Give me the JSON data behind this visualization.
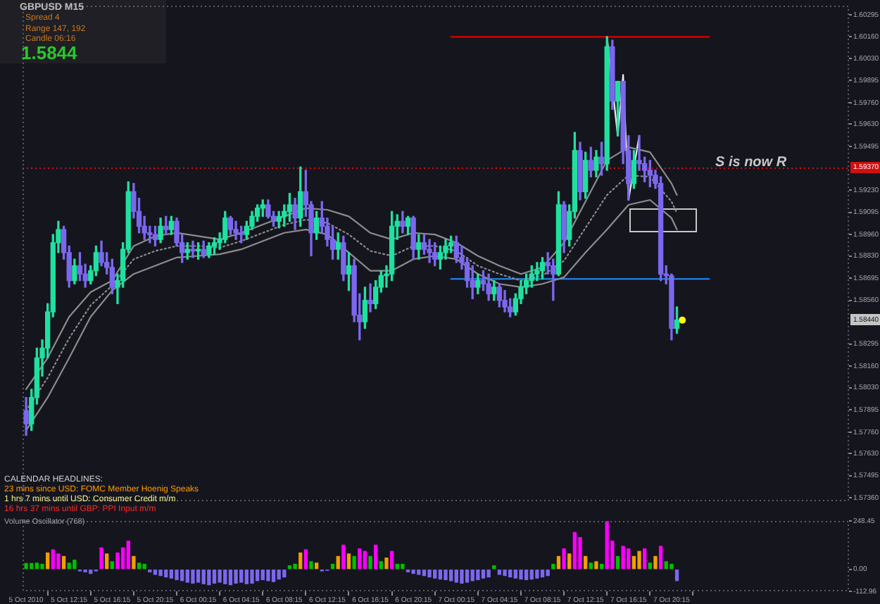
{
  "chart_data": [
    {
      "type": "candlestick",
      "title": "GBPUSD M15",
      "x": [
        "2010-10-05T08:15",
        "2010-10-05T08:45",
        "2010-10-05T09:15",
        "2010-10-05T09:45",
        "2010-10-05T10:15",
        "2010-10-05T10:45",
        "2010-10-05T11:15",
        "2010-10-05T11:45",
        "2010-10-05T12:15",
        "2010-10-05T12:45",
        "2010-10-05T13:15",
        "2010-10-05T13:45",
        "2010-10-05T14:15",
        "2010-10-05T14:45",
        "2010-10-05T15:15",
        "2010-10-05T15:45",
        "2010-10-05T16:15",
        "2010-10-05T16:45",
        "2010-10-05T17:15",
        "2010-10-05T17:45",
        "2010-10-05T18:15",
        "2010-10-05T18:45",
        "2010-10-05T19:15",
        "2010-10-05T19:45",
        "2010-10-05T20:15",
        "2010-10-05T20:45",
        "2010-10-05T21:15",
        "2010-10-05T21:45",
        "2010-10-05T22:15",
        "2010-10-05T22:45",
        "2010-10-05T23:15",
        "2010-10-05T23:45",
        "2010-10-06T00:15",
        "2010-10-06T00:45",
        "2010-10-06T01:15",
        "2010-10-06T01:45",
        "2010-10-06T02:15",
        "2010-10-06T02:45",
        "2010-10-06T03:15",
        "2010-10-06T03:45",
        "2010-10-06T04:15",
        "2010-10-06T04:45",
        "2010-10-06T05:15",
        "2010-10-06T05:45",
        "2010-10-06T06:15",
        "2010-10-06T06:45",
        "2010-10-06T07:15",
        "2010-10-06T07:45",
        "2010-10-06T08:15",
        "2010-10-06T08:45",
        "2010-10-06T09:15",
        "2010-10-06T09:45",
        "2010-10-06T10:15",
        "2010-10-06T10:45",
        "2010-10-06T11:15",
        "2010-10-06T11:45",
        "2010-10-06T12:15",
        "2010-10-06T12:45",
        "2010-10-06T13:15",
        "2010-10-06T13:45",
        "2010-10-06T14:15",
        "2010-10-06T14:45",
        "2010-10-06T15:15",
        "2010-10-06T15:45",
        "2010-10-06T16:15",
        "2010-10-06T16:45",
        "2010-10-06T17:15",
        "2010-10-06T17:45",
        "2010-10-06T18:15",
        "2010-10-06T18:45",
        "2010-10-06T19:15",
        "2010-10-06T19:45",
        "2010-10-06T20:15",
        "2010-10-06T20:45",
        "2010-10-06T21:15",
        "2010-10-06T21:45",
        "2010-10-06T22:15",
        "2010-10-06T22:45",
        "2010-10-06T23:15",
        "2010-10-06T23:45",
        "2010-10-07T00:15",
        "2010-10-07T00:45",
        "2010-10-07T01:15",
        "2010-10-07T01:45",
        "2010-10-07T02:15",
        "2010-10-07T02:45",
        "2010-10-07T03:15",
        "2010-10-07T03:45",
        "2010-10-07T04:15",
        "2010-10-07T04:45",
        "2010-10-07T05:15",
        "2010-10-07T05:45",
        "2010-10-07T06:15",
        "2010-10-07T06:45",
        "2010-10-07T07:15",
        "2010-10-07T07:45",
        "2010-10-07T08:15",
        "2010-10-07T08:45",
        "2010-10-07T09:15",
        "2010-10-07T09:45",
        "2010-10-07T10:15",
        "2010-10-07T10:45",
        "2010-10-07T11:15",
        "2010-10-07T11:45",
        "2010-10-07T12:15",
        "2010-10-07T12:45",
        "2010-10-07T13:15",
        "2010-10-07T13:45",
        "2010-10-07T14:15",
        "2010-10-07T14:45",
        "2010-10-07T15:15",
        "2010-10-07T15:45",
        "2010-10-07T16:15",
        "2010-10-07T16:45",
        "2010-10-07T17:15",
        "2010-10-07T17:45",
        "2010-10-07T18:15",
        "2010-10-07T18:45",
        "2010-10-07T19:15",
        "2010-10-07T19:45",
        "2010-10-07T20:15",
        "2010-10-07T20:45"
      ],
      "ohlc": [
        [
          1.5789,
          1.5797,
          1.5774,
          1.5781
        ],
        [
          1.5781,
          1.5802,
          1.5777,
          1.5797
        ],
        [
          1.5797,
          1.5827,
          1.5793,
          1.5821
        ],
        [
          1.5821,
          1.5832,
          1.581,
          1.5827
        ],
        [
          1.5827,
          1.5854,
          1.5821,
          1.5849
        ],
        [
          1.5849,
          1.5896,
          1.5846,
          1.5891
        ],
        [
          1.5891,
          1.5904,
          1.5885,
          1.5899
        ],
        [
          1.5899,
          1.5901,
          1.5881,
          1.5885
        ],
        [
          1.5885,
          1.5889,
          1.5864,
          1.5868
        ],
        [
          1.5868,
          1.5881,
          1.5866,
          1.5877
        ],
        [
          1.5877,
          1.5885,
          1.5868,
          1.5872
        ],
        [
          1.5872,
          1.5878,
          1.5864,
          1.5868
        ],
        [
          1.5868,
          1.5877,
          1.5866,
          1.5874
        ],
        [
          1.5874,
          1.5889,
          1.5871,
          1.5885
        ],
        [
          1.5885,
          1.5892,
          1.5877,
          1.5879
        ],
        [
          1.5879,
          1.5885,
          1.5872,
          1.5876
        ],
        [
          1.5876,
          1.5881,
          1.586,
          1.5864
        ],
        [
          1.5864,
          1.5872,
          1.5854,
          1.5868
        ],
        [
          1.5868,
          1.5891,
          1.5864,
          1.5887
        ],
        [
          1.5887,
          1.5928,
          1.5885,
          1.5922
        ],
        [
          1.5922,
          1.5927,
          1.5906,
          1.591
        ],
        [
          1.591,
          1.5918,
          1.5897,
          1.5901
        ],
        [
          1.5901,
          1.5907,
          1.5893,
          1.5897
        ],
        [
          1.5897,
          1.5901,
          1.5891,
          1.5896
        ],
        [
          1.5896,
          1.5901,
          1.5889,
          1.5893
        ],
        [
          1.5893,
          1.5906,
          1.5891,
          1.5901
        ],
        [
          1.5901,
          1.5907,
          1.5896,
          1.5899
        ],
        [
          1.5899,
          1.5907,
          1.5896,
          1.5904
        ],
        [
          1.5904,
          1.5906,
          1.5889,
          1.5891
        ],
        [
          1.5891,
          1.5896,
          1.5879,
          1.5885
        ],
        [
          1.5885,
          1.5891,
          1.5881,
          1.5887
        ],
        [
          1.5887,
          1.5892,
          1.5882,
          1.5886
        ],
        [
          1.5886,
          1.5891,
          1.5881,
          1.5887
        ],
        [
          1.5887,
          1.5892,
          1.5882,
          1.5884
        ],
        [
          1.5884,
          1.5891,
          1.5882,
          1.5889
        ],
        [
          1.5889,
          1.5894,
          1.5884,
          1.5891
        ],
        [
          1.5891,
          1.5897,
          1.5887,
          1.5893
        ],
        [
          1.5893,
          1.591,
          1.5891,
          1.5906
        ],
        [
          1.5906,
          1.5907,
          1.5896,
          1.5899
        ],
        [
          1.5899,
          1.5904,
          1.5893,
          1.5897
        ],
        [
          1.5897,
          1.5901,
          1.5891,
          1.5896
        ],
        [
          1.5896,
          1.5904,
          1.5893,
          1.5901
        ],
        [
          1.5901,
          1.591,
          1.5899,
          1.5907
        ],
        [
          1.5907,
          1.5914,
          1.5904,
          1.5912
        ],
        [
          1.5912,
          1.5917,
          1.5907,
          1.5914
        ],
        [
          1.5914,
          1.5917,
          1.5906,
          1.5907
        ],
        [
          1.5907,
          1.591,
          1.5901,
          1.5904
        ],
        [
          1.5904,
          1.591,
          1.59,
          1.5907
        ],
        [
          1.5907,
          1.5914,
          1.5901,
          1.591
        ],
        [
          1.591,
          1.5921,
          1.5904,
          1.5914
        ],
        [
          1.5914,
          1.5918,
          1.5899,
          1.5906
        ],
        [
          1.5906,
          1.5937,
          1.5901,
          1.5922
        ],
        [
          1.5922,
          1.5935,
          1.5907,
          1.5914
        ],
        [
          1.5914,
          1.5916,
          1.5883,
          1.5897
        ],
        [
          1.5897,
          1.591,
          1.5893,
          1.5906
        ],
        [
          1.5906,
          1.5916,
          1.5897,
          1.5901
        ],
        [
          1.5901,
          1.5906,
          1.5889,
          1.5893
        ],
        [
          1.5893,
          1.5901,
          1.5881,
          1.5887
        ],
        [
          1.5887,
          1.5897,
          1.5881,
          1.5891
        ],
        [
          1.5891,
          1.5895,
          1.5868,
          1.5872
        ],
        [
          1.5872,
          1.5885,
          1.5862,
          1.5877
        ],
        [
          1.5877,
          1.5881,
          1.5843,
          1.5847
        ],
        [
          1.5847,
          1.586,
          1.5832,
          1.5843
        ],
        [
          1.5843,
          1.5864,
          1.5839,
          1.5856
        ],
        [
          1.5856,
          1.5866,
          1.5849,
          1.5854
        ],
        [
          1.5854,
          1.5868,
          1.5851,
          1.5864
        ],
        [
          1.5864,
          1.5874,
          1.5861,
          1.5871
        ],
        [
          1.5871,
          1.5877,
          1.5864,
          1.5872
        ],
        [
          1.5872,
          1.591,
          1.5868,
          1.5901
        ],
        [
          1.5901,
          1.5908,
          1.5893,
          1.5904
        ],
        [
          1.5904,
          1.591,
          1.5897,
          1.5901
        ],
        [
          1.5901,
          1.5907,
          1.5896,
          1.5906
        ],
        [
          1.5906,
          1.5907,
          1.5881,
          1.5887
        ],
        [
          1.5887,
          1.5896,
          1.5881,
          1.5891
        ],
        [
          1.5891,
          1.5896,
          1.5884,
          1.5887
        ],
        [
          1.5887,
          1.5893,
          1.5879,
          1.5885
        ],
        [
          1.5885,
          1.5891,
          1.5877,
          1.5881
        ],
        [
          1.5881,
          1.5889,
          1.5875,
          1.5885
        ],
        [
          1.5885,
          1.5893,
          1.5881,
          1.5889
        ],
        [
          1.5889,
          1.5895,
          1.5885,
          1.5891
        ],
        [
          1.5891,
          1.5895,
          1.5879,
          1.5882
        ],
        [
          1.5882,
          1.5889,
          1.5875,
          1.5879
        ],
        [
          1.5879,
          1.5882,
          1.5864,
          1.5868
        ],
        [
          1.5868,
          1.5877,
          1.5857,
          1.5864
        ],
        [
          1.5864,
          1.5872,
          1.586,
          1.5868
        ],
        [
          1.5868,
          1.5874,
          1.5862,
          1.5866
        ],
        [
          1.5866,
          1.5872,
          1.5856,
          1.586
        ],
        [
          1.586,
          1.5868,
          1.5856,
          1.5864
        ],
        [
          1.5864,
          1.5866,
          1.5852,
          1.5856
        ],
        [
          1.5856,
          1.5862,
          1.5849,
          1.5852
        ],
        [
          1.5852,
          1.5857,
          1.5846,
          1.5849
        ],
        [
          1.5849,
          1.586,
          1.5847,
          1.5857
        ],
        [
          1.5857,
          1.5868,
          1.5854,
          1.5864
        ],
        [
          1.5864,
          1.5872,
          1.586,
          1.5868
        ],
        [
          1.5868,
          1.5877,
          1.5864,
          1.5872
        ],
        [
          1.5872,
          1.5879,
          1.5868,
          1.5874
        ],
        [
          1.5874,
          1.5882,
          1.5869,
          1.5879
        ],
        [
          1.5879,
          1.5885,
          1.5872,
          1.5877
        ],
        [
          1.5877,
          1.5881,
          1.5856,
          1.5872
        ],
        [
          1.5872,
          1.5922,
          1.5871,
          1.5914
        ],
        [
          1.5914,
          1.5916,
          1.5885,
          1.5893
        ],
        [
          1.5893,
          1.5914,
          1.5889,
          1.591
        ],
        [
          1.591,
          1.5958,
          1.5906,
          1.5947
        ],
        [
          1.5947,
          1.5952,
          1.5917,
          1.5922
        ],
        [
          1.5922,
          1.5946,
          1.5918,
          1.5941
        ],
        [
          1.5941,
          1.5949,
          1.5931,
          1.5935
        ],
        [
          1.5935,
          1.5947,
          1.5931,
          1.5943
        ],
        [
          1.5943,
          1.5952,
          1.5932,
          1.5939
        ],
        [
          1.5939,
          1.6016,
          1.5935,
          1.601
        ],
        [
          1.601,
          1.6014,
          1.5972,
          1.5977
        ],
        [
          1.5977,
          1.5989,
          1.5956,
          1.5989
        ],
        [
          1.5989,
          1.5989,
          1.5939,
          1.5947
        ],
        [
          1.5947,
          1.5956,
          1.5917,
          1.5927
        ],
        [
          1.5927,
          1.5947,
          1.5924,
          1.5941
        ],
        [
          1.5941,
          1.5956,
          1.5935,
          1.5939
        ],
        [
          1.5939,
          1.5943,
          1.5928,
          1.5935
        ],
        [
          1.5935,
          1.5941,
          1.5925,
          1.5932
        ],
        [
          1.5932,
          1.5935,
          1.5924,
          1.5927
        ],
        [
          1.5927,
          1.5931,
          1.5868,
          1.5872
        ],
        [
          1.5872,
          1.5877,
          1.5866,
          1.5871
        ],
        [
          1.5871,
          1.5872,
          1.5832,
          1.5839
        ],
        [
          1.5839,
          1.5852,
          1.5836,
          1.5844
        ]
      ],
      "colors": [
        "#7b68ee",
        "#20e0a0",
        "#20e0a0",
        "#20e0a0",
        "#20e0a0",
        "#20e0a0",
        "#20e0a0",
        "#7b68ee",
        "#7b68ee",
        "#20e0a0",
        "#7b68ee",
        "#7b68ee",
        "#20e0a0",
        "#20e0a0",
        "#7b68ee",
        "#7b68ee",
        "#7b68ee",
        "#20e0a0",
        "#20e0a0",
        "#20e0a0",
        "#7b68ee",
        "#7b68ee",
        "#7b68ee",
        "#7b68ee",
        "#7b68ee",
        "#20e0a0",
        "#7b68ee",
        "#20e0a0",
        "#7b68ee",
        "#7b68ee",
        "#20e0a0",
        "#7b68ee",
        "#20e0a0",
        "#7b68ee",
        "#20e0a0",
        "#20e0a0",
        "#20e0a0",
        "#20e0a0",
        "#7b68ee",
        "#7b68ee",
        "#7b68ee",
        "#20e0a0",
        "#20e0a0",
        "#20e0a0",
        "#20e0a0",
        "#7b68ee",
        "#7b68ee",
        "#20e0a0",
        "#20e0a0",
        "#20e0a0",
        "#7b68ee",
        "#20e0a0",
        "#7b68ee",
        "#7b68ee",
        "#20e0a0",
        "#7b68ee",
        "#7b68ee",
        "#7b68ee",
        "#20e0a0",
        "#7b68ee",
        "#20e0a0",
        "#7b68ee",
        "#7b68ee",
        "#20e0a0",
        "#7b68ee",
        "#20e0a0",
        "#20e0a0",
        "#20e0a0",
        "#20e0a0",
        "#20e0a0",
        "#7b68ee",
        "#20e0a0",
        "#7b68ee",
        "#20e0a0",
        "#7b68ee",
        "#7b68ee",
        "#7b68ee",
        "#20e0a0",
        "#20e0a0",
        "#20e0a0",
        "#7b68ee",
        "#7b68ee",
        "#7b68ee",
        "#7b68ee",
        "#20e0a0",
        "#7b68ee",
        "#7b68ee",
        "#20e0a0",
        "#7b68ee",
        "#7b68ee",
        "#7b68ee",
        "#20e0a0",
        "#20e0a0",
        "#20e0a0",
        "#20e0a0",
        "#20e0a0",
        "#20e0a0",
        "#7b68ee",
        "#7b68ee",
        "#20e0a0",
        "#7b68ee",
        "#20e0a0",
        "#20e0a0",
        "#7b68ee",
        "#20e0a0",
        "#7b68ee",
        "#20e0a0",
        "#7b68ee",
        "#20e0a0",
        "#7b68ee",
        "#20e0a0",
        "#7b68ee",
        "#7b68ee",
        "#20e0a0",
        "#7b68ee",
        "#7b68ee",
        "#7b68ee",
        "#7b68ee",
        "#7b68ee",
        "#7b68ee",
        "#7b68ee",
        "#20e0a0"
      ],
      "series": [
        {
          "type": "line",
          "x": [
            "2010-10-05T08:15",
            "2010-10-05T10:15",
            "2010-10-05T12:15",
            "2010-10-05T14:15",
            "2010-10-05T16:15",
            "2010-10-05T18:15",
            "2010-10-05T20:15",
            "2010-10-05T22:15",
            "2010-10-06T00:15",
            "2010-10-06T02:15",
            "2010-10-06T04:15",
            "2010-10-06T06:15",
            "2010-10-06T08:15",
            "2010-10-06T10:15",
            "2010-10-06T12:15",
            "2010-10-06T14:15",
            "2010-10-06T16:15",
            "2010-10-06T18:15",
            "2010-10-06T20:15",
            "2010-10-06T22:15",
            "2010-10-07T00:15",
            "2010-10-07T02:15",
            "2010-10-07T04:15",
            "2010-10-07T06:15",
            "2010-10-07T08:15",
            "2010-10-07T10:15",
            "2010-10-07T12:15",
            "2010-10-07T14:15",
            "2010-10-07T16:15",
            "2010-10-07T18:15",
            "2010-10-07T20:15",
            "2010-10-07T20:45"
          ],
          "values": [
            1.5802,
            1.5821,
            1.5846,
            1.5861,
            1.5868,
            1.5889,
            1.5895,
            1.5897,
            1.5895,
            1.5893,
            1.5897,
            1.5902,
            1.5907,
            1.5912,
            1.5911,
            1.5907,
            1.5897,
            1.5893,
            1.5897,
            1.5896,
            1.5891,
            1.5883,
            1.5877,
            1.5872,
            1.5876,
            1.5891,
            1.5916,
            1.5941,
            1.5949,
            1.5946,
            1.5927,
            1.592
          ],
          "color": "#8c8c8c"
        },
        {
          "type": "line",
          "x": [
            "2010-10-05T08:15",
            "2010-10-05T10:15",
            "2010-10-05T12:15",
            "2010-10-05T14:15",
            "2010-10-05T16:15",
            "2010-10-05T18:15",
            "2010-10-05T20:15",
            "2010-10-05T22:15",
            "2010-10-06T00:15",
            "2010-10-06T02:15",
            "2010-10-06T04:15",
            "2010-10-06T06:15",
            "2010-10-06T08:15",
            "2010-10-06T10:15",
            "2010-10-06T12:15",
            "2010-10-06T14:15",
            "2010-10-06T16:15",
            "2010-10-06T18:15",
            "2010-10-06T20:15",
            "2010-10-06T22:15",
            "2010-10-07T00:15",
            "2010-10-07T02:15",
            "2010-10-07T04:15",
            "2010-10-07T06:15",
            "2010-10-07T08:15",
            "2010-10-07T10:15",
            "2010-10-07T12:15",
            "2010-10-07T14:15",
            "2010-10-07T16:15",
            "2010-10-07T18:15",
            "2010-10-07T20:15",
            "2010-10-07T20:45"
          ],
          "values": [
            1.5789,
            1.5809,
            1.5833,
            1.5853,
            1.5865,
            1.5881,
            1.5886,
            1.5889,
            1.5889,
            1.5888,
            1.5892,
            1.5897,
            1.5902,
            1.5905,
            1.5903,
            1.5896,
            1.5886,
            1.5883,
            1.5889,
            1.5889,
            1.5886,
            1.5877,
            1.5872,
            1.5868,
            1.5871,
            1.588,
            1.59,
            1.592,
            1.5932,
            1.5931,
            1.5916,
            1.5909
          ],
          "color": "#8c8c8c",
          "line_style": "dotted"
        },
        {
          "type": "line",
          "x": [
            "2010-10-05T08:15",
            "2010-10-05T10:15",
            "2010-10-05T12:15",
            "2010-10-05T14:15",
            "2010-10-05T16:15",
            "2010-10-05T18:15",
            "2010-10-05T20:15",
            "2010-10-05T22:15",
            "2010-10-06T00:15",
            "2010-10-06T02:15",
            "2010-10-06T04:15",
            "2010-10-06T06:15",
            "2010-10-06T08:15",
            "2010-10-06T10:15",
            "2010-10-06T12:15",
            "2010-10-06T14:15",
            "2010-10-06T16:15",
            "2010-10-06T18:15",
            "2010-10-06T20:15",
            "2010-10-06T22:15",
            "2010-10-07T00:15",
            "2010-10-07T02:15",
            "2010-10-07T04:15",
            "2010-10-07T06:15",
            "2010-10-07T08:15",
            "2010-10-07T10:15",
            "2010-10-07T12:15",
            "2010-10-07T14:15",
            "2010-10-07T16:15",
            "2010-10-07T18:15",
            "2010-10-07T20:15",
            "2010-10-07T20:45"
          ],
          "values": [
            1.5777,
            1.5797,
            1.5821,
            1.5846,
            1.5862,
            1.5872,
            1.5877,
            1.5882,
            1.5883,
            1.5884,
            1.5887,
            1.5892,
            1.5897,
            1.5899,
            1.5896,
            1.5885,
            1.5874,
            1.5874,
            1.5881,
            1.5883,
            1.5881,
            1.5872,
            1.5866,
            1.5864,
            1.5866,
            1.587,
            1.5885,
            1.5899,
            1.5914,
            1.5917,
            1.5906,
            1.5899
          ],
          "color": "#8c8c8c"
        },
        {
          "type": "line",
          "x": [
            "2010-10-07T14:15",
            "2010-10-07T15:15",
            "2010-10-07T15:45",
            "2010-10-07T16:15",
            "2010-10-07T17:15"
          ],
          "values": [
            1.6016,
            1.5956,
            1.5993,
            1.5917,
            1.5956
          ],
          "color": "#f0f0f0"
        },
        {
          "type": "line",
          "x": [
            "2010-10-06T23:45",
            "2010-10-07T23:45"
          ],
          "values": [
            1.6016,
            1.6016
          ],
          "color": "#e00000"
        },
        {
          "type": "line",
          "x": [
            "2010-10-06T23:45",
            "2010-10-07T23:45"
          ],
          "values": [
            1.5869,
            1.5869
          ],
          "color": "#1e90ff"
        },
        {
          "type": "scatter",
          "x": [
            "2010-10-07T21:15"
          ],
          "values": [
            1.5844
          ],
          "color": "#ffff00",
          "marker": "circle"
        }
      ],
      "ref_lines": [
        {
          "axis": "y",
          "value": 1.5937,
          "label": "1.59370",
          "color": "#d01010",
          "line_style": "dotted"
        }
      ],
      "annotations": [
        "Spread 4",
        "Range 147, 192",
        "Candle 06:16",
        "1.5844",
        "CALENDAR HEADLINES:",
        "23 mins since USD: FOMC Member Hoenig Speaks",
        "1 hrs 7 mins until USD: Consumer Credit m/m",
        "16 hrs 37 mins until GBP: PPI Input m/m",
        "S is now R",
        {
          "text": "1.58440",
          "y": 1.5844
        }
      ],
      "xlim": [
        "2010-10-05T07:55",
        "2010-10-08T12:45"
      ],
      "ylim": [
        1.5734,
        1.6035
      ],
      "yticks": [
        {
          "value": 1.5736,
          "label": "1.57360"
        },
        1.57495,
        {
          "value": 1.5763,
          "label": "1.57630"
        },
        {
          "value": 1.5776,
          "label": "1.57760"
        },
        1.57895,
        {
          "value": 1.5803,
          "label": "1.58030"
        },
        {
          "value": 1.5816,
          "label": "1.58160"
        },
        1.58295,
        {
          "value": 1.5856,
          "label": "1.58560"
        },
        1.58695,
        {
          "value": 1.5883,
          "label": "1.58830"
        },
        {
          "value": 1.5896,
          "label": "1.58960"
        },
        1.59095,
        {
          "value": 1.5923,
          "label": "1.59230"
        },
        1.59495,
        {
          "value": 1.5963,
          "label": "1.59630"
        },
        {
          "value": 1.5976,
          "label": "1.59760"
        },
        1.59895,
        {
          "value": 1.6003,
          "label": "1.60030"
        },
        {
          "value": 1.6016,
          "label": "1.60160"
        },
        1.60295
      ],
      "tick_labels": "y"
    },
    {
      "type": "bar",
      "title": "Volume Oscillator (768)",
      "x": [
        "2010-10-05T08:15",
        "2010-10-05T08:45",
        "2010-10-05T09:15",
        "2010-10-05T09:45",
        "2010-10-05T10:15",
        "2010-10-05T10:45",
        "2010-10-05T11:15",
        "2010-10-05T11:45",
        "2010-10-05T12:15",
        "2010-10-05T12:45",
        "2010-10-05T13:15",
        "2010-10-05T13:45",
        "2010-10-05T14:15",
        "2010-10-05T14:45",
        "2010-10-05T15:15",
        "2010-10-05T15:45",
        "2010-10-05T16:15",
        "2010-10-05T16:45",
        "2010-10-05T17:15",
        "2010-10-05T17:45",
        "2010-10-05T18:15",
        "2010-10-05T18:45",
        "2010-10-05T19:15",
        "2010-10-05T19:45",
        "2010-10-05T20:15",
        "2010-10-05T20:45",
        "2010-10-05T21:15",
        "2010-10-05T21:45",
        "2010-10-05T22:15",
        "2010-10-05T22:45",
        "2010-10-05T23:15",
        "2010-10-05T23:45",
        "2010-10-06T00:15",
        "2010-10-06T00:45",
        "2010-10-06T01:15",
        "2010-10-06T01:45",
        "2010-10-06T02:15",
        "2010-10-06T02:45",
        "2010-10-06T03:15",
        "2010-10-06T03:45",
        "2010-10-06T04:15",
        "2010-10-06T04:45",
        "2010-10-06T05:15",
        "2010-10-06T05:45",
        "2010-10-06T06:15",
        "2010-10-06T06:45",
        "2010-10-06T07:15",
        "2010-10-06T07:45",
        "2010-10-06T08:15",
        "2010-10-06T08:45",
        "2010-10-06T09:15",
        "2010-10-06T09:45",
        "2010-10-06T10:15",
        "2010-10-06T10:45",
        "2010-10-06T11:15",
        "2010-10-06T11:45",
        "2010-10-06T12:15",
        "2010-10-06T12:45",
        "2010-10-06T13:15",
        "2010-10-06T13:45",
        "2010-10-06T14:15",
        "2010-10-06T14:45",
        "2010-10-06T15:15",
        "2010-10-06T15:45",
        "2010-10-06T16:15",
        "2010-10-06T16:45",
        "2010-10-06T17:15",
        "2010-10-06T17:45",
        "2010-10-06T18:15",
        "2010-10-06T18:45",
        "2010-10-06T19:15",
        "2010-10-06T19:45",
        "2010-10-06T20:15",
        "2010-10-06T20:45",
        "2010-10-06T21:15",
        "2010-10-06T21:45",
        "2010-10-06T22:15",
        "2010-10-06T22:45",
        "2010-10-06T23:15",
        "2010-10-06T23:45",
        "2010-10-07T00:15",
        "2010-10-07T00:45",
        "2010-10-07T01:15",
        "2010-10-07T01:45",
        "2010-10-07T02:15",
        "2010-10-07T02:45",
        "2010-10-07T03:15",
        "2010-10-07T03:45",
        "2010-10-07T04:15",
        "2010-10-07T04:45",
        "2010-10-07T05:15",
        "2010-10-07T05:45",
        "2010-10-07T06:15",
        "2010-10-07T06:45",
        "2010-10-07T07:15",
        "2010-10-07T07:45",
        "2010-10-07T08:15",
        "2010-10-07T08:45",
        "2010-10-07T09:15",
        "2010-10-07T09:45",
        "2010-10-07T10:15",
        "2010-10-07T10:45",
        "2010-10-07T11:15",
        "2010-10-07T11:45",
        "2010-10-07T12:15",
        "2010-10-07T12:45",
        "2010-10-07T13:15",
        "2010-10-07T13:45",
        "2010-10-07T14:15",
        "2010-10-07T14:45",
        "2010-10-07T15:15",
        "2010-10-07T15:45",
        "2010-10-07T16:15",
        "2010-10-07T16:45",
        "2010-10-07T17:15",
        "2010-10-07T17:45",
        "2010-10-07T18:15",
        "2010-10-07T18:45",
        "2010-10-07T19:15",
        "2010-10-07T19:45",
        "2010-10-07T20:15",
        "2010-10-07T20:45"
      ],
      "values": [
        30,
        30,
        32,
        26,
        84,
        100,
        79,
        66,
        32,
        47,
        -8,
        -13,
        -21,
        -8,
        110,
        79,
        39,
        84,
        110,
        145,
        66,
        32,
        26,
        -13,
        -26,
        -32,
        -39,
        -45,
        -53,
        -58,
        -66,
        -71,
        -66,
        -74,
        -79,
        -71,
        -66,
        -74,
        -79,
        -71,
        -66,
        -74,
        -71,
        -58,
        -53,
        -58,
        -63,
        -50,
        -39,
        18,
        26,
        84,
        100,
        39,
        32,
        -8,
        -5,
        26,
        66,
        124,
        79,
        66,
        105,
        92,
        66,
        124,
        39,
        58,
        92,
        26,
        26,
        -13,
        -21,
        -26,
        -32,
        -39,
        -45,
        -50,
        -53,
        -58,
        -66,
        -71,
        -66,
        -58,
        -53,
        -45,
        -39,
        18,
        -26,
        -32,
        -39,
        -45,
        -50,
        -53,
        -50,
        -45,
        -39,
        -32,
        26,
        66,
        105,
        79,
        189,
        163,
        66,
        32,
        39,
        26,
        245,
        145,
        66,
        118,
        105,
        66,
        92,
        105,
        32,
        66,
        118,
        39,
        26,
        -58
      ],
      "colors": [
        "#00c000",
        "#00c000",
        "#00c000",
        "#00c000",
        "#f0a000",
        "#ff00ff",
        "#ff00ff",
        "#f0a000",
        "#00c000",
        "#00c000",
        "#7b68ee",
        "#7b68ee",
        "#7b68ee",
        "#7b68ee",
        "#ff00ff",
        "#f0a000",
        "#00c000",
        "#ff00ff",
        "#ff00ff",
        "#ff00ff",
        "#f0a000",
        "#00c000",
        "#00c000",
        "#7b68ee",
        "#7b68ee",
        "#7b68ee",
        "#7b68ee",
        "#7b68ee",
        "#7b68ee",
        "#7b68ee",
        "#7b68ee",
        "#7b68ee",
        "#7b68ee",
        "#7b68ee",
        "#7b68ee",
        "#7b68ee",
        "#7b68ee",
        "#7b68ee",
        "#7b68ee",
        "#7b68ee",
        "#7b68ee",
        "#7b68ee",
        "#7b68ee",
        "#7b68ee",
        "#7b68ee",
        "#7b68ee",
        "#7b68ee",
        "#7b68ee",
        "#7b68ee",
        "#00c000",
        "#00c000",
        "#f0a000",
        "#ff00ff",
        "#00c000",
        "#f0a000",
        "#7b68ee",
        "#7b68ee",
        "#00c000",
        "#f0a000",
        "#ff00ff",
        "#f0a000",
        "#00c000",
        "#ff00ff",
        "#ff00ff",
        "#00c000",
        "#ff00ff",
        "#00c000",
        "#f0a000",
        "#ff00ff",
        "#00c000",
        "#00c000",
        "#7b68ee",
        "#7b68ee",
        "#7b68ee",
        "#7b68ee",
        "#7b68ee",
        "#7b68ee",
        "#7b68ee",
        "#7b68ee",
        "#7b68ee",
        "#7b68ee",
        "#7b68ee",
        "#7b68ee",
        "#7b68ee",
        "#7b68ee",
        "#7b68ee",
        "#7b68ee",
        "#00c000",
        "#7b68ee",
        "#7b68ee",
        "#7b68ee",
        "#7b68ee",
        "#7b68ee",
        "#7b68ee",
        "#7b68ee",
        "#7b68ee",
        "#7b68ee",
        "#7b68ee",
        "#00c000",
        "#f0a000",
        "#ff00ff",
        "#f0a000",
        "#ff00ff",
        "#ff00ff",
        "#f0a000",
        "#00c000",
        "#f0a000",
        "#00c000",
        "#ff00ff",
        "#ff00ff",
        "#00c000",
        "#ff00ff",
        "#ff00ff",
        "#f0a000",
        "#f0a000",
        "#ff00ff",
        "#00c000",
        "#f0a000",
        "#ff00ff",
        "#00c000",
        "#00c000",
        "#7b68ee"
      ],
      "xlim": [
        "2010-10-05T07:55",
        "2010-10-08T12:45"
      ],
      "ylim": [
        -112.96,
        248.45
      ],
      "xticks": [
        {
          "value": "2010-10-05T08:15",
          "label": "5 Oct 2010"
        },
        {
          "value": "2010-10-05T12:15",
          "label": "5 Oct 12:15"
        },
        {
          "value": "2010-10-05T16:15",
          "label": "5 Oct 16:15"
        },
        {
          "value": "2010-10-05T20:15",
          "label": "5 Oct 20:15"
        },
        {
          "value": "2010-10-06T00:15",
          "label": "6 Oct 00:15"
        },
        {
          "value": "2010-10-06T04:15",
          "label": "6 Oct 04:15"
        },
        {
          "value": "2010-10-06T08:15",
          "label": "6 Oct 08:15"
        },
        {
          "value": "2010-10-06T12:15",
          "label": "6 Oct 12:15"
        },
        {
          "value": "2010-10-06T16:15",
          "label": "6 Oct 16:15"
        },
        {
          "value": "2010-10-06T20:15",
          "label": "6 Oct 20:15"
        },
        {
          "value": "2010-10-07T00:15",
          "label": "7 Oct 00:15"
        },
        {
          "value": "2010-10-07T04:15",
          "label": "7 Oct 04:15"
        },
        {
          "value": "2010-10-07T08:15",
          "label": "7 Oct 08:15"
        },
        {
          "value": "2010-10-07T12:15",
          "label": "7 Oct 12:15"
        },
        {
          "value": "2010-10-07T16:15",
          "label": "7 Oct 16:15"
        },
        {
          "value": "2010-10-07T20:15",
          "label": "7 Oct 20:15"
        }
      ],
      "yticks": [
        248.45,
        {
          "value": 0,
          "label": "0.00"
        },
        -112.96
      ]
    }
  ]
}
